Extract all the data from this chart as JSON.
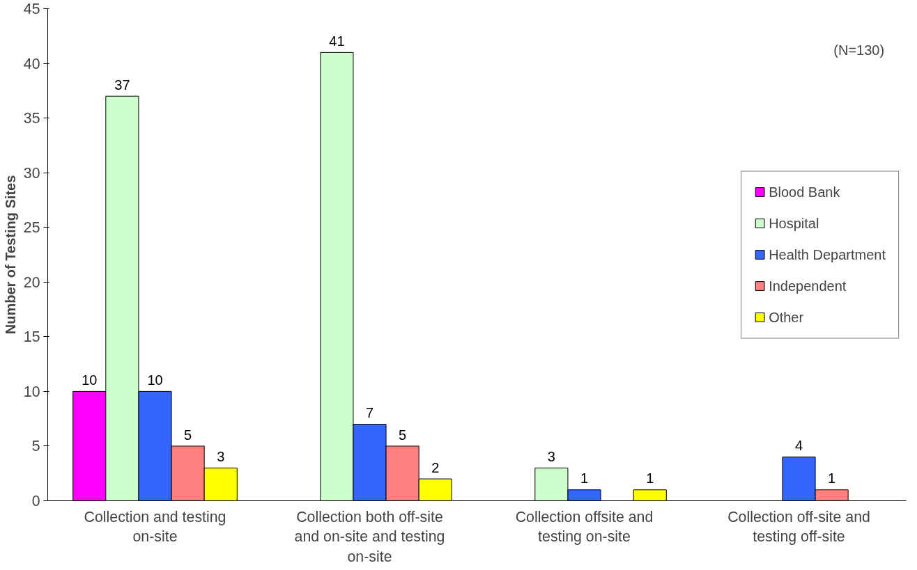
{
  "chart_data": {
    "type": "bar",
    "ylabel": "Number of Testing Sites",
    "categories": [
      "Collection and testing on-site",
      "Collection both off-site and on-site and testing on-site",
      "Collection offsite and testing on-site",
      "Collection off-site and testing off-site"
    ],
    "series": [
      {
        "name": "Blood Bank",
        "color": "#ff00ff",
        "values": [
          10,
          null,
          null,
          null
        ]
      },
      {
        "name": "Hospital",
        "color": "#ccffcc",
        "values": [
          37,
          41,
          3,
          null
        ]
      },
      {
        "name": "Health Department",
        "color": "#3366ff",
        "values": [
          10,
          7,
          1,
          4
        ]
      },
      {
        "name": "Independent",
        "color": "#ff8080",
        "values": [
          5,
          5,
          null,
          1
        ]
      },
      {
        "name": "Other",
        "color": "#ffff00",
        "values": [
          3,
          2,
          1,
          null
        ]
      }
    ],
    "ylim": [
      0,
      45
    ],
    "yticks": [
      0,
      5,
      10,
      15,
      20,
      25,
      30,
      35,
      40,
      45
    ],
    "data_labels": true,
    "grid": false,
    "legend": "right",
    "annotations": [
      "(N=130)"
    ]
  }
}
